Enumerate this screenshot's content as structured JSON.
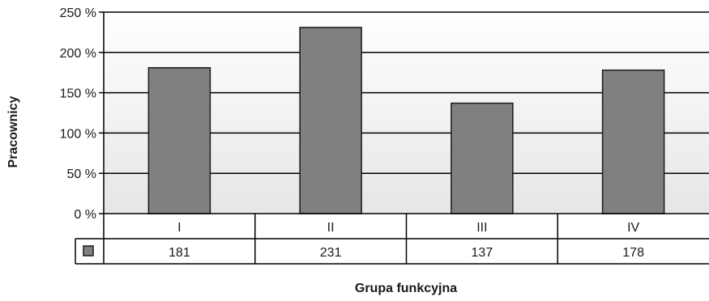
{
  "chart_data": {
    "type": "bar",
    "categories": [
      "I",
      "II",
      "III",
      "IV"
    ],
    "values": [
      181,
      231,
      137,
      178
    ],
    "table_values": [
      "181",
      "231",
      "137",
      "178"
    ],
    "ylabel": "Pracownicy",
    "xlabel": "Grupa funkcyjna",
    "ylim": [
      0,
      250
    ],
    "yticks": [
      0,
      50,
      100,
      150,
      200,
      250
    ],
    "ytick_labels": [
      "0 %",
      "50 %",
      "100 %",
      "150 %",
      "200 %",
      "250 %"
    ],
    "grid": true,
    "legend": "data table with series swatch",
    "bar_color": "#808080",
    "bar_stroke": "#1a1a1a",
    "plot_bg_top": "#ffffff",
    "plot_bg_bottom": "#e6e6e6"
  }
}
